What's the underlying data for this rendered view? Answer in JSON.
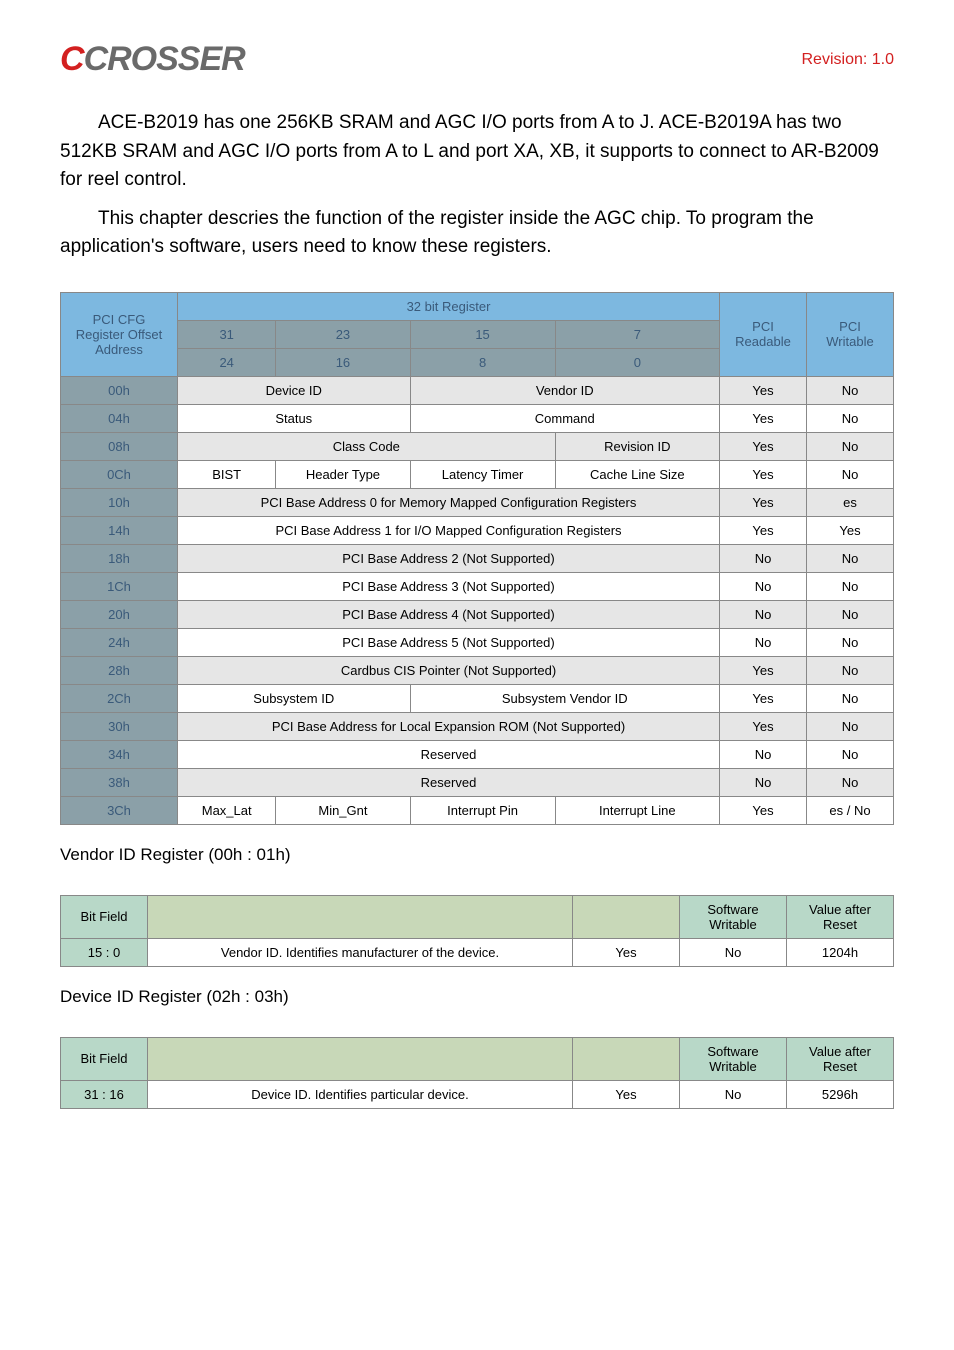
{
  "header": {
    "logo_c": "C",
    "logo_rest": "CROSSER",
    "revision": "Revision: 1.0"
  },
  "para1": "ACE-B2019 has one 256KB SRAM and AGC I/O ports from A to J. ACE-B2019A has two 512KB SRAM and AGC I/O ports from A to L and port XA, XB, it supports to connect to AR-B2009 for reel control.",
  "para2": "This chapter descries the function of the register inside the AGC chip. To program the application's software, users need to know these registers.",
  "main_table": {
    "col_heads": {
      "offset": "PCI CFG Register Offset Address",
      "reg": "32 bit Register",
      "readable": "PCI Readable",
      "writable": "PCI Writable",
      "b31": "31",
      "b24": "24",
      "b23": "23",
      "b16": "16",
      "b15": "15",
      "b8": "8",
      "b7": "7",
      "b0": "0"
    },
    "rows": [
      {
        "off": "00h",
        "cells": [
          {
            "span": 2,
            "t": "Device ID"
          },
          {
            "span": 2,
            "t": "Vendor ID"
          }
        ],
        "r": "Yes",
        "w": "No"
      },
      {
        "off": "04h",
        "cells": [
          {
            "span": 2,
            "t": "Status"
          },
          {
            "span": 2,
            "t": "Command"
          }
        ],
        "r": "Yes",
        "w": "No"
      },
      {
        "off": "08h",
        "cells": [
          {
            "span": 3,
            "t": "Class Code"
          },
          {
            "span": 1,
            "t": "Revision ID"
          }
        ],
        "r": "Yes",
        "w": "No"
      },
      {
        "off": "0Ch",
        "cells": [
          {
            "span": 1,
            "t": "BIST"
          },
          {
            "span": 1,
            "t": "Header Type"
          },
          {
            "span": 1,
            "t": "Latency Timer"
          },
          {
            "span": 1,
            "t": "Cache Line Size"
          }
        ],
        "r": "Yes",
        "w": "No"
      },
      {
        "off": "10h",
        "cells": [
          {
            "span": 4,
            "t": "PCI Base Address 0 for Memory Mapped Configuration Registers"
          }
        ],
        "r": "Yes",
        "w": "es"
      },
      {
        "off": "14h",
        "cells": [
          {
            "span": 4,
            "t": "PCI Base Address 1 for I/O Mapped Configuration Registers"
          }
        ],
        "r": "Yes",
        "w": "Yes"
      },
      {
        "off": "18h",
        "cells": [
          {
            "span": 4,
            "t": "PCI Base Address 2 (Not Supported)"
          }
        ],
        "r": "No",
        "w": "No"
      },
      {
        "off": "1Ch",
        "cells": [
          {
            "span": 4,
            "t": "PCI Base Address 3 (Not Supported)"
          }
        ],
        "r": "No",
        "w": "No"
      },
      {
        "off": "20h",
        "cells": [
          {
            "span": 4,
            "t": "PCI Base Address 4 (Not Supported)"
          }
        ],
        "r": "No",
        "w": "No"
      },
      {
        "off": "24h",
        "cells": [
          {
            "span": 4,
            "t": "PCI Base Address 5 (Not Supported)"
          }
        ],
        "r": "No",
        "w": "No"
      },
      {
        "off": "28h",
        "cells": [
          {
            "span": 4,
            "t": "Cardbus CIS Pointer (Not Supported)"
          }
        ],
        "r": "Yes",
        "w": "No"
      },
      {
        "off": "2Ch",
        "cells": [
          {
            "span": 2,
            "t": "Subsystem ID"
          },
          {
            "span": 2,
            "t": "Subsystem Vendor ID"
          }
        ],
        "r": "Yes",
        "w": "No"
      },
      {
        "off": "30h",
        "cells": [
          {
            "span": 4,
            "t": "PCI Base Address for Local Expansion ROM (Not Supported)"
          }
        ],
        "r": "Yes",
        "w": "No"
      },
      {
        "off": "34h",
        "cells": [
          {
            "span": 4,
            "t": "Reserved"
          }
        ],
        "r": "No",
        "w": "No"
      },
      {
        "off": "38h",
        "cells": [
          {
            "span": 4,
            "t": "Reserved"
          }
        ],
        "r": "No",
        "w": "No"
      },
      {
        "off": "3Ch",
        "cells": [
          {
            "span": 1,
            "t": "Max_Lat"
          },
          {
            "span": 1,
            "t": "Min_Gnt"
          },
          {
            "span": 1,
            "t": "Interrupt Pin"
          },
          {
            "span": 1,
            "t": "Interrupt Line"
          }
        ],
        "r": "Yes",
        "w": "es / No"
      }
    ]
  },
  "vendor_section": {
    "title": "Vendor ID Register (00h : 01h)",
    "head": {
      "bf": "Bit Field",
      "desc": "",
      "sw": "Software Writable",
      "va": "Value after Reset"
    },
    "row": {
      "bf": "15 : 0",
      "desc": "Vendor ID. Identifies manufacturer of the device.",
      "c3": "Yes",
      "sw": "No",
      "va": "1204h"
    }
  },
  "device_section": {
    "title": "Device ID Register (02h : 03h)",
    "head": {
      "bf": "Bit Field",
      "desc": "",
      "sw": "Software Writable",
      "va": "Value after Reset"
    },
    "row": {
      "bf": "31 : 16",
      "desc": "Device ID. Identifies particular device.",
      "c3": "Yes",
      "sw": "No",
      "va": "5296h"
    }
  }
}
